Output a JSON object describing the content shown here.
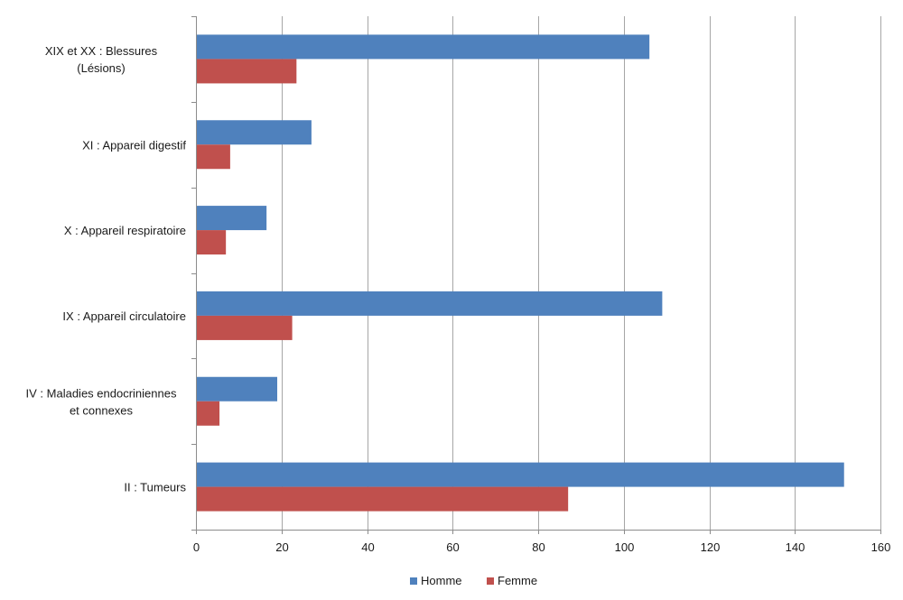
{
  "chart_data": {
    "type": "bar",
    "orientation": "horizontal",
    "title": "",
    "xlabel": "",
    "ylabel": "",
    "xlim": [
      0,
      160
    ],
    "xticks": [
      0,
      20,
      40,
      60,
      80,
      100,
      120,
      140,
      160
    ],
    "grid": true,
    "legend_position": "bottom",
    "categories": [
      "XIX et XX : Blessures (Lésions)",
      "XI : Appareil digestif",
      "X : Appareil respiratoire",
      "IX : Appareil circulatoire",
      "IV : Maladies endocriniennes et connexes",
      "II : Tumeurs"
    ],
    "series": [
      {
        "name": "Homme",
        "color": "#4f81bd",
        "values": [
          106,
          27,
          16.5,
          109,
          19,
          151.5
        ]
      },
      {
        "name": "Femme",
        "color": "#c0504d",
        "values": [
          23.5,
          8,
          7,
          22.5,
          5.5,
          87
        ]
      }
    ]
  }
}
